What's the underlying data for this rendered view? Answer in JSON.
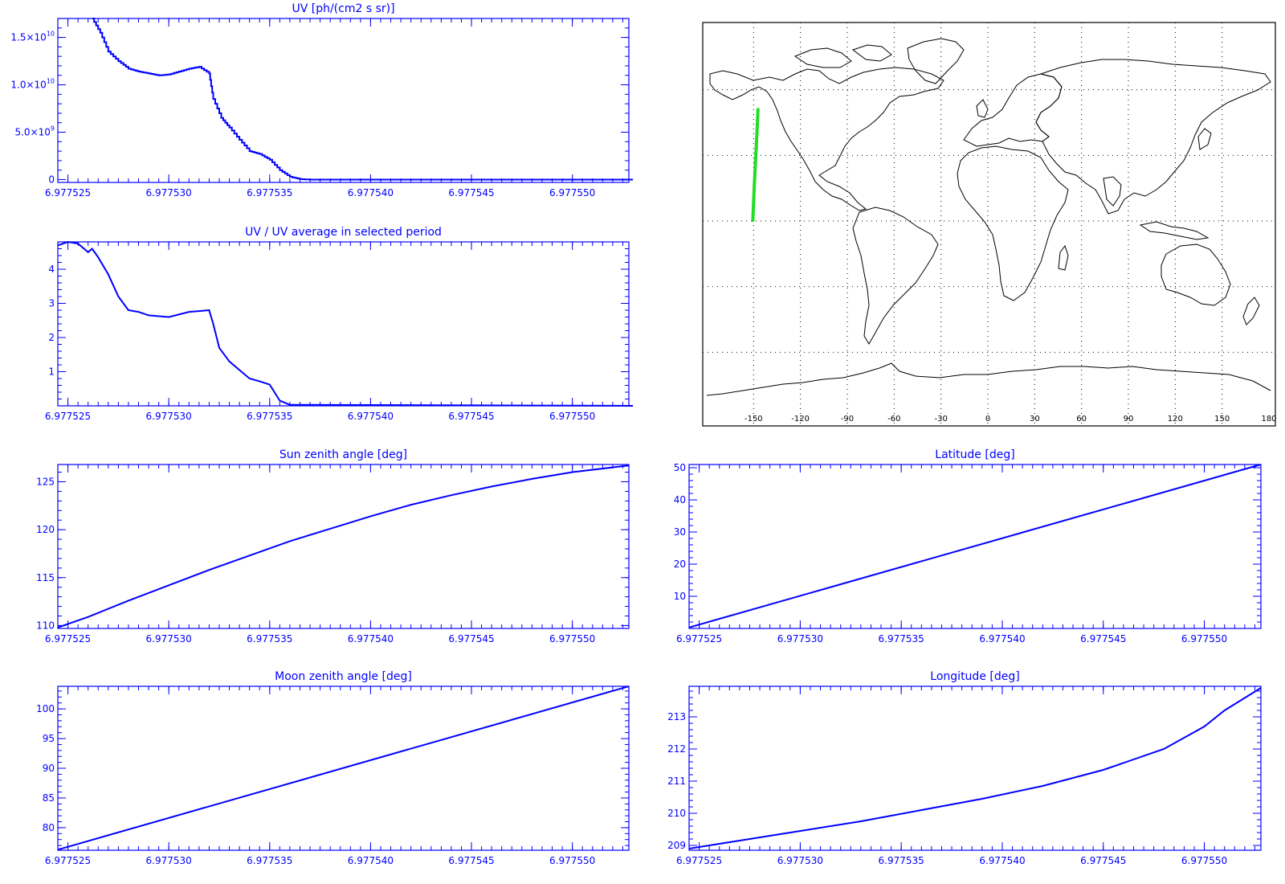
{
  "colors": {
    "axis": "#0000ff",
    "series": "#0000ff",
    "track": "#22dd22",
    "map_lines": "#000000"
  },
  "chart_data": [
    {
      "id": "uv",
      "type": "line",
      "title": "UV [ph/(cm2 s sr)]",
      "xlim": [
        6.9775245,
        6.9775528
      ],
      "ylim": [
        -300000000.0,
        17000000000.0
      ],
      "xticks": [
        6.977525,
        6.97753,
        6.977535,
        6.97754,
        6.977545,
        6.97755
      ],
      "xtick_labels": [
        "6.977525",
        "6.977530",
        "6.977535",
        "6.977540",
        "6.977545",
        "6.977550"
      ],
      "yticks": [
        0,
        5000000000.0,
        10000000000.0,
        15000000000.0
      ],
      "ytick_labels": [
        {
          "mantissa": "0",
          "exponent": ""
        },
        {
          "mantissa": "5.0×10",
          "exponent": "9"
        },
        {
          "mantissa": "1.0×10",
          "exponent": "10"
        },
        {
          "mantissa": "1.5×10",
          "exponent": "10"
        }
      ],
      "step": true,
      "x": [
        6.9775262,
        6.9775266,
        6.977527,
        6.9775275,
        6.977528,
        6.9775285,
        6.977529,
        6.9775295,
        6.97753,
        6.9775305,
        6.977531,
        6.9775315,
        6.977532,
        6.9775322,
        6.9775326,
        6.977533,
        6.9775335,
        6.977534,
        6.9775345,
        6.977535,
        6.9775355,
        6.977536,
        6.9775365,
        6.977537,
        6.977553
      ],
      "y": [
        17000000000.0,
        15500000000.0,
        13500000000.0,
        12500000000.0,
        11700000000.0,
        11400000000.0,
        11200000000.0,
        11000000000.0,
        11100000000.0,
        11400000000.0,
        11700000000.0,
        11900000000.0,
        11200000000.0,
        8500000000.0,
        6500000000.0,
        5500000000.0,
        4200000000.0,
        3000000000.0,
        2700000000.0,
        2100000000.0,
        1000000000.0,
        300000000.0,
        50000000.0,
        0,
        0
      ]
    },
    {
      "id": "uv_ratio",
      "type": "line",
      "title": "UV / UV average in selected period",
      "xlim": [
        6.9775245,
        6.9775528
      ],
      "ylim": [
        0,
        4.8
      ],
      "xticks": [
        6.977525,
        6.97753,
        6.977535,
        6.97754,
        6.977545,
        6.97755
      ],
      "xtick_labels": [
        "6.977525",
        "6.977530",
        "6.977535",
        "6.977540",
        "6.977545",
        "6.977550"
      ],
      "yticks": [
        1,
        2,
        3,
        4
      ],
      "ytick_labels": [
        "1",
        "2",
        "3",
        "4"
      ],
      "x": [
        6.9775245,
        6.977525,
        6.9775255,
        6.977526,
        6.9775262,
        6.9775265,
        6.977527,
        6.9775275,
        6.977528,
        6.9775285,
        6.977529,
        6.97753,
        6.977531,
        6.977532,
        6.9775322,
        6.9775325,
        6.977533,
        6.9775335,
        6.977534,
        6.9775345,
        6.977535,
        6.9775355,
        6.977536,
        6.977553
      ],
      "y": [
        4.7,
        4.8,
        4.75,
        4.5,
        4.6,
        4.35,
        3.85,
        3.2,
        2.8,
        2.75,
        2.65,
        2.6,
        2.75,
        2.8,
        2.4,
        1.7,
        1.3,
        1.05,
        0.8,
        0.72,
        0.62,
        0.15,
        0.03,
        0.0
      ]
    },
    {
      "id": "sun_zenith",
      "type": "line",
      "title": "Sun zenith angle [deg]",
      "xlim": [
        6.9775245,
        6.9775528
      ],
      "ylim": [
        109.7,
        126.8
      ],
      "xticks": [
        6.977525,
        6.97753,
        6.977535,
        6.97754,
        6.977545,
        6.97755
      ],
      "xtick_labels": [
        "6.977525",
        "6.977530",
        "6.977535",
        "6.977540",
        "6.977545",
        "6.977550"
      ],
      "yticks": [
        110,
        115,
        120,
        125
      ],
      "ytick_labels": [
        "110",
        "115",
        "120",
        "125"
      ],
      "x": [
        6.9775245,
        6.977526,
        6.977528,
        6.97753,
        6.977532,
        6.977534,
        6.977536,
        6.977538,
        6.97754,
        6.977542,
        6.977544,
        6.977546,
        6.977548,
        6.97755,
        6.9775528
      ],
      "y": [
        109.8,
        110.9,
        112.6,
        114.2,
        115.8,
        117.3,
        118.8,
        120.1,
        121.4,
        122.6,
        123.6,
        124.5,
        125.3,
        126.0,
        126.7
      ]
    },
    {
      "id": "latitude",
      "type": "line",
      "title": "Latitude [deg]",
      "xlim": [
        6.9775245,
        6.9775528
      ],
      "ylim": [
        0,
        51
      ],
      "xticks": [
        6.977525,
        6.97753,
        6.977535,
        6.97754,
        6.977545,
        6.97755
      ],
      "xtick_labels": [
        "6.977525",
        "6.977530",
        "6.977535",
        "6.977540",
        "6.977545",
        "6.977550"
      ],
      "yticks": [
        10,
        20,
        30,
        40,
        50
      ],
      "ytick_labels": [
        "10",
        "20",
        "30",
        "40",
        "50"
      ],
      "x": [
        6.9775245,
        6.9775528
      ],
      "y": [
        0.3,
        51
      ]
    },
    {
      "id": "moon_zenith",
      "type": "line",
      "title": "Moon zenith angle [deg]",
      "xlim": [
        6.9775245,
        6.9775528
      ],
      "ylim": [
        76.2,
        103.8
      ],
      "xticks": [
        6.977525,
        6.97753,
        6.977535,
        6.97754,
        6.977545,
        6.97755
      ],
      "xtick_labels": [
        "6.977525",
        "6.977530",
        "6.977535",
        "6.977540",
        "6.977545",
        "6.977550"
      ],
      "yticks": [
        80,
        85,
        90,
        95,
        100
      ],
      "ytick_labels": [
        "80",
        "85",
        "90",
        "95",
        "100"
      ],
      "x": [
        6.9775245,
        6.9775528
      ],
      "y": [
        76.3,
        103.8
      ]
    },
    {
      "id": "longitude",
      "type": "line",
      "title": "Longitude [deg]",
      "xlim": [
        6.9775245,
        6.9775528
      ],
      "ylim": [
        208.85,
        213.95
      ],
      "xticks": [
        6.977525,
        6.97753,
        6.977535,
        6.97754,
        6.977545,
        6.97755
      ],
      "xtick_labels": [
        "6.977525",
        "6.977530",
        "6.977535",
        "6.977540",
        "6.977545",
        "6.977550"
      ],
      "yticks": [
        209,
        210,
        211,
        212,
        213
      ],
      "ytick_labels": [
        "209",
        "210",
        "211",
        "212",
        "213"
      ],
      "x": [
        6.9775245,
        6.977527,
        6.97753,
        6.977533,
        6.977536,
        6.977539,
        6.977542,
        6.977545,
        6.977548,
        6.97755,
        6.977551,
        6.9775528
      ],
      "y": [
        208.9,
        209.15,
        209.45,
        209.75,
        210.1,
        210.45,
        210.85,
        211.35,
        212.0,
        212.7,
        213.2,
        213.9
      ]
    },
    {
      "id": "map",
      "type": "scatter",
      "xlim": [
        -180,
        180
      ],
      "ylim": [
        -90,
        90
      ],
      "xticks": [
        -150,
        -120,
        -90,
        -60,
        -30,
        0,
        30,
        60,
        90,
        120,
        150,
        180
      ],
      "xtick_labels": [
        "-150",
        "-120",
        "-90",
        "-60",
        "-30",
        "0",
        "30",
        "60",
        "90",
        "120",
        "150",
        "180"
      ],
      "grid": true,
      "track": {
        "lon": [
          -150.5,
          -149.5,
          -148.0,
          -147.2
        ],
        "lat": [
          0.3,
          17,
          38,
          51
        ]
      }
    }
  ]
}
